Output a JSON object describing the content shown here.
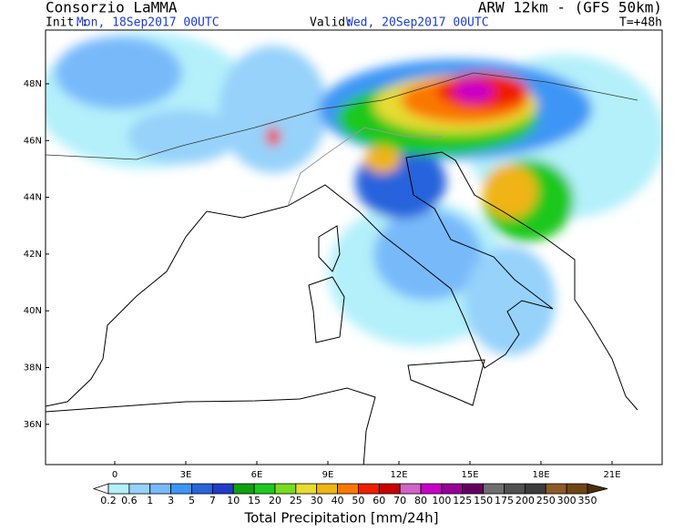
{
  "header": {
    "org": "Consorzio LaMMA",
    "model": "ARW 12km - (GFS 50km)",
    "init_label": "Init.:",
    "init": "Mon, 18Sep2017 00UTC",
    "valid_label": "Valid:",
    "valid": "Wed, 20Sep2017 00UTC",
    "lead": "T=+48h"
  },
  "lat_labels": [
    "48N",
    "46N",
    "44N",
    "42N",
    "40N",
    "38N",
    "36N"
  ],
  "lon_labels": [
    "0",
    "3E",
    "6E",
    "9E",
    "12E",
    "15E",
    "18E",
    "21E"
  ],
  "colorbar": {
    "title": "Total Precipitation [mm/24h]",
    "labels": [
      "0.2",
      "0.6",
      "1",
      "3",
      "5",
      "7",
      "10",
      "15",
      "20",
      "25",
      "30",
      "40",
      "50",
      "60",
      "70",
      "80",
      "100",
      "125",
      "150",
      "175",
      "200",
      "250",
      "300",
      "350"
    ],
    "colors": [
      "#ffffff",
      "#b4f0fa",
      "#96d2fa",
      "#78b9fa",
      "#3c96f5",
      "#2864dc",
      "#1e3cc8",
      "#0fa00f",
      "#1ec81e",
      "#78dc1e",
      "#e6dc32",
      "#f0b414",
      "#fa7800",
      "#f01e00",
      "#c80000",
      "#d264c8",
      "#c800c8",
      "#960096",
      "#640064",
      "#6e6e6e",
      "#505050",
      "#3c3c3c",
      "#8c5a28",
      "#6e4614",
      "#4b2d0a"
    ]
  }
}
